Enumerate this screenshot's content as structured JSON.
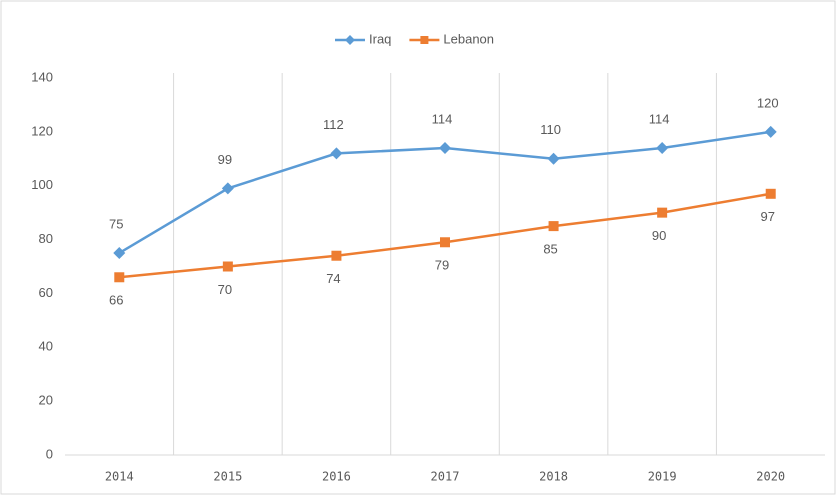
{
  "chart_data": {
    "type": "line",
    "categories": [
      "2014",
      "2015",
      "2016",
      "2017",
      "2018",
      "2019",
      "2020"
    ],
    "series": [
      {
        "name": "Iraq",
        "color": "#5b9bd5",
        "marker": "diamond",
        "values": [
          75,
          99,
          112,
          114,
          110,
          114,
          120
        ]
      },
      {
        "name": "Lebanon",
        "color": "#ed7d31",
        "marker": "square",
        "values": [
          66,
          70,
          74,
          79,
          85,
          90,
          97
        ]
      }
    ],
    "ylim": [
      0,
      140
    ],
    "yticks": [
      0,
      20,
      40,
      60,
      80,
      100,
      120,
      140
    ],
    "grid": true,
    "legend": "top",
    "data_labels": true
  }
}
